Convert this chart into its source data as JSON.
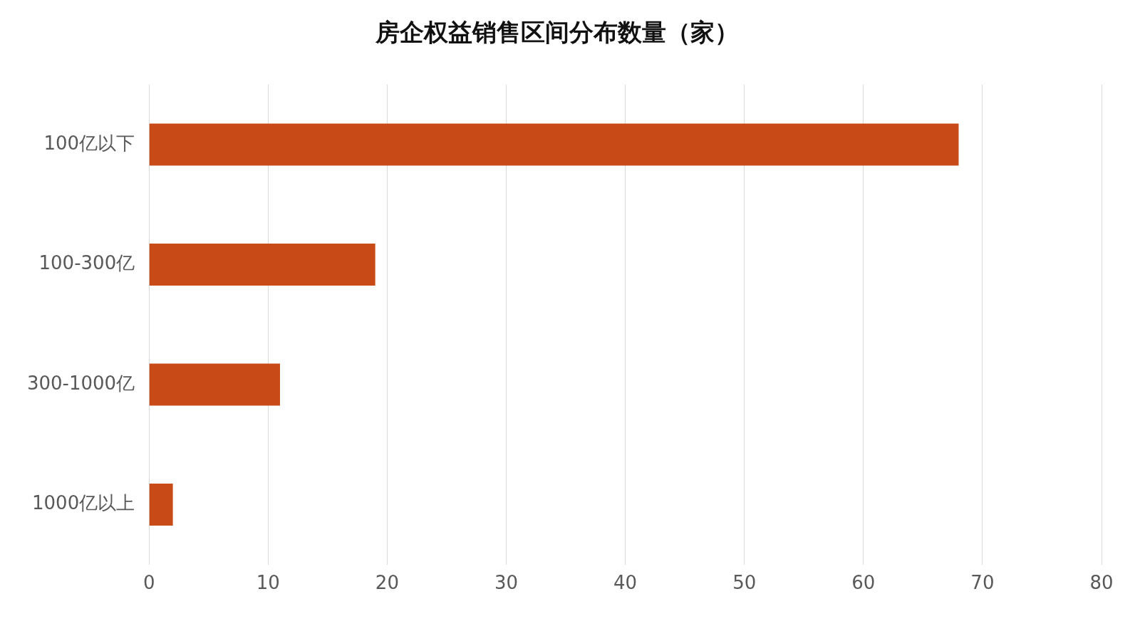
{
  "chart_data": {
    "type": "bar",
    "orientation": "horizontal",
    "title": "房企权益销售区间分布数量（家）",
    "categories": [
      "100亿以下",
      "100-300亿",
      "300-1000亿",
      "1000亿以上"
    ],
    "values": [
      68,
      19,
      11,
      2
    ],
    "color": "#c84b17",
    "xlim": [
      0,
      80
    ],
    "xticks": [
      0,
      10,
      20,
      30,
      40,
      50,
      60,
      70,
      80
    ],
    "grid": "x"
  }
}
